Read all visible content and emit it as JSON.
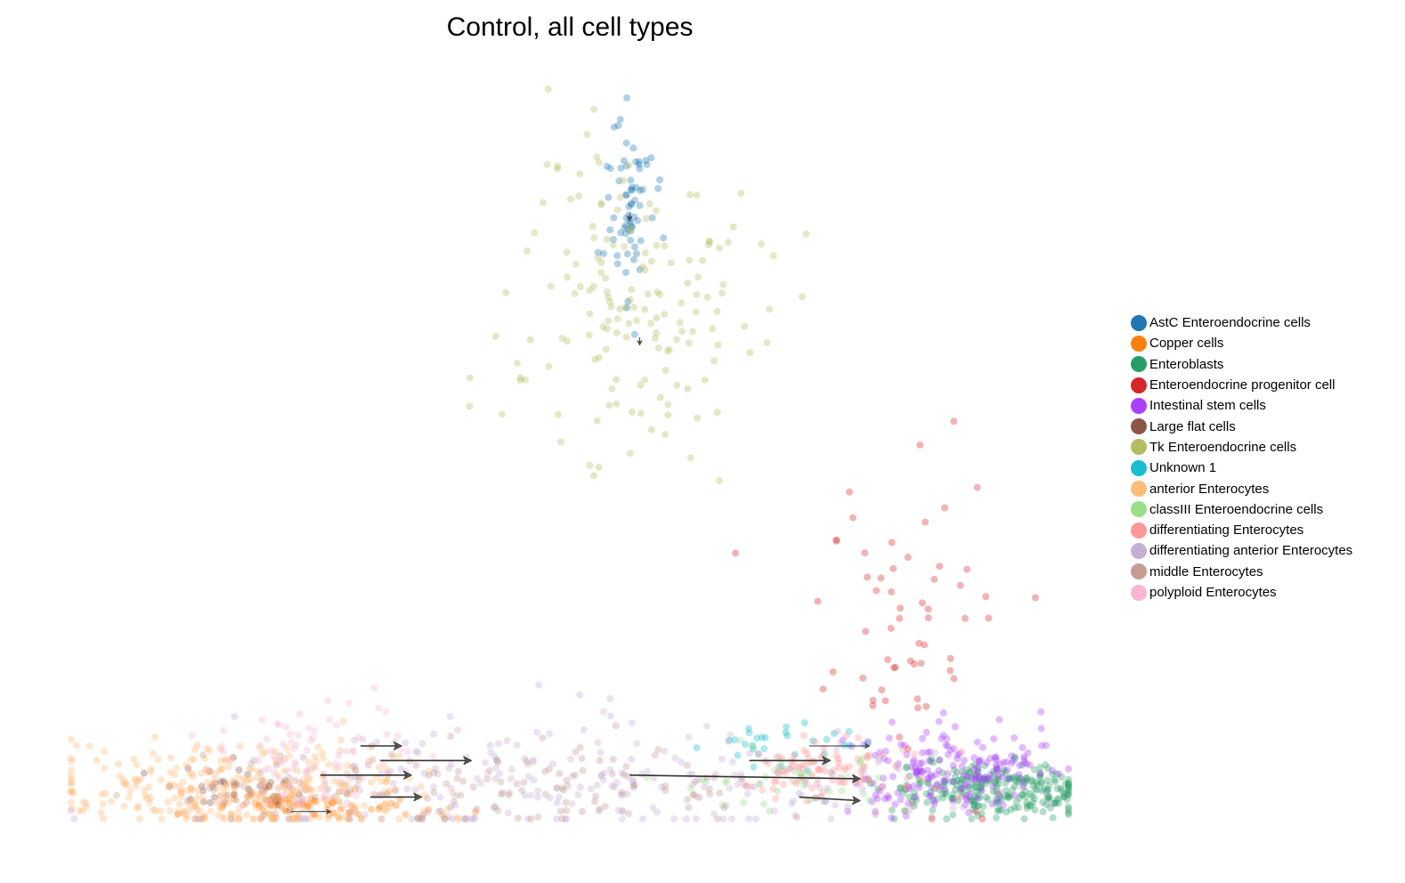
{
  "chart_data": {
    "type": "scatter",
    "title": "Control, all cell types",
    "xlabel": "",
    "ylabel": "",
    "axes_visible": false,
    "grid": false,
    "legend_placement": "right",
    "overlay": "velocity-stream-arrows",
    "x_range": [
      0,
      1
    ],
    "y_range": [
      0,
      1
    ],
    "note_units": "embedding coordinates (unitless), 0 = left/bottom, 1 = right/top of the embedding",
    "series": [
      {
        "name": "AstC Enteroendocrine cells",
        "color": "#1f77b4",
        "center": [
          0.56,
          0.84
        ],
        "spread": [
          0.012,
          0.07
        ],
        "n": 70
      },
      {
        "name": "Copper cells",
        "color": "#ff7f0e",
        "center": [
          0.24,
          0.02
        ],
        "spread": [
          0.06,
          0.012
        ],
        "n": 90
      },
      {
        "name": "Enteroblasts",
        "color": "#279e68",
        "center": [
          0.92,
          0.04
        ],
        "spread": [
          0.05,
          0.018
        ],
        "n": 260
      },
      {
        "name": "Enteroendocrine progenitor cell",
        "color": "#d62728",
        "center": [
          0.84,
          0.28
        ],
        "spread": [
          0.05,
          0.12
        ],
        "n": 60
      },
      {
        "name": "Intestinal stem cells",
        "color": "#aa40fc",
        "center": [
          0.88,
          0.07
        ],
        "spread": [
          0.05,
          0.03
        ],
        "n": 180
      },
      {
        "name": "Large flat cells",
        "color": "#8c564b",
        "center": [
          0.16,
          0.04
        ],
        "spread": [
          0.05,
          0.015
        ],
        "n": 40
      },
      {
        "name": "Tk Enteroendocrine cells",
        "color": "#b5bd61",
        "center": [
          0.56,
          0.7
        ],
        "spread": [
          0.06,
          0.12
        ],
        "n": 160
      },
      {
        "name": "Unknown 1",
        "color": "#17becf",
        "center": [
          0.72,
          0.1
        ],
        "spread": [
          0.04,
          0.02
        ],
        "n": 30
      },
      {
        "name": "anterior Enterocytes",
        "color": "#ffbb78",
        "center": [
          0.18,
          0.04
        ],
        "spread": [
          0.1,
          0.03
        ],
        "n": 320
      },
      {
        "name": "classIII Enteroendocrine cells",
        "color": "#98df8a",
        "center": [
          0.7,
          0.06
        ],
        "spread": [
          0.06,
          0.02
        ],
        "n": 40
      },
      {
        "name": "differentiating Enterocytes",
        "color": "#ff9896",
        "center": [
          0.76,
          0.07
        ],
        "spread": [
          0.05,
          0.02
        ],
        "n": 90
      },
      {
        "name": "differentiating anterior Enterocytes",
        "color": "#c5b0d5",
        "center": [
          0.5,
          0.05
        ],
        "spread": [
          0.18,
          0.04
        ],
        "n": 220
      },
      {
        "name": "middle Enterocytes",
        "color": "#c49c94",
        "center": [
          0.45,
          0.04
        ],
        "spread": [
          0.18,
          0.03
        ],
        "n": 150
      },
      {
        "name": "polyploid Enterocytes",
        "color": "#f7b6d2",
        "center": [
          0.24,
          0.08
        ],
        "spread": [
          0.05,
          0.03
        ],
        "n": 90
      }
    ],
    "arrows": [
      {
        "from": [
          0.29,
          0.1
        ],
        "to": [
          0.33,
          0.1
        ],
        "size": "large"
      },
      {
        "from": [
          0.31,
          0.08
        ],
        "to": [
          0.4,
          0.08
        ],
        "size": "large"
      },
      {
        "from": [
          0.25,
          0.06
        ],
        "to": [
          0.34,
          0.06
        ],
        "size": "large"
      },
      {
        "from": [
          0.3,
          0.03
        ],
        "to": [
          0.35,
          0.03
        ],
        "size": "large"
      },
      {
        "from": [
          0.22,
          0.01
        ],
        "to": [
          0.26,
          0.01
        ],
        "size": "small"
      },
      {
        "from": [
          0.56,
          0.06
        ],
        "to": [
          0.79,
          0.055
        ],
        "size": "large"
      },
      {
        "from": [
          0.68,
          0.08
        ],
        "to": [
          0.76,
          0.08
        ],
        "size": "large"
      },
      {
        "from": [
          0.74,
          0.1
        ],
        "to": [
          0.8,
          0.1
        ],
        "size": "small"
      },
      {
        "from": [
          0.73,
          0.03
        ],
        "to": [
          0.79,
          0.025
        ],
        "size": "large"
      },
      {
        "from": [
          0.56,
          0.83
        ],
        "to": [
          0.56,
          0.82
        ],
        "size": "small"
      },
      {
        "from": [
          0.57,
          0.66
        ],
        "to": [
          0.57,
          0.65
        ],
        "size": "small"
      }
    ]
  }
}
